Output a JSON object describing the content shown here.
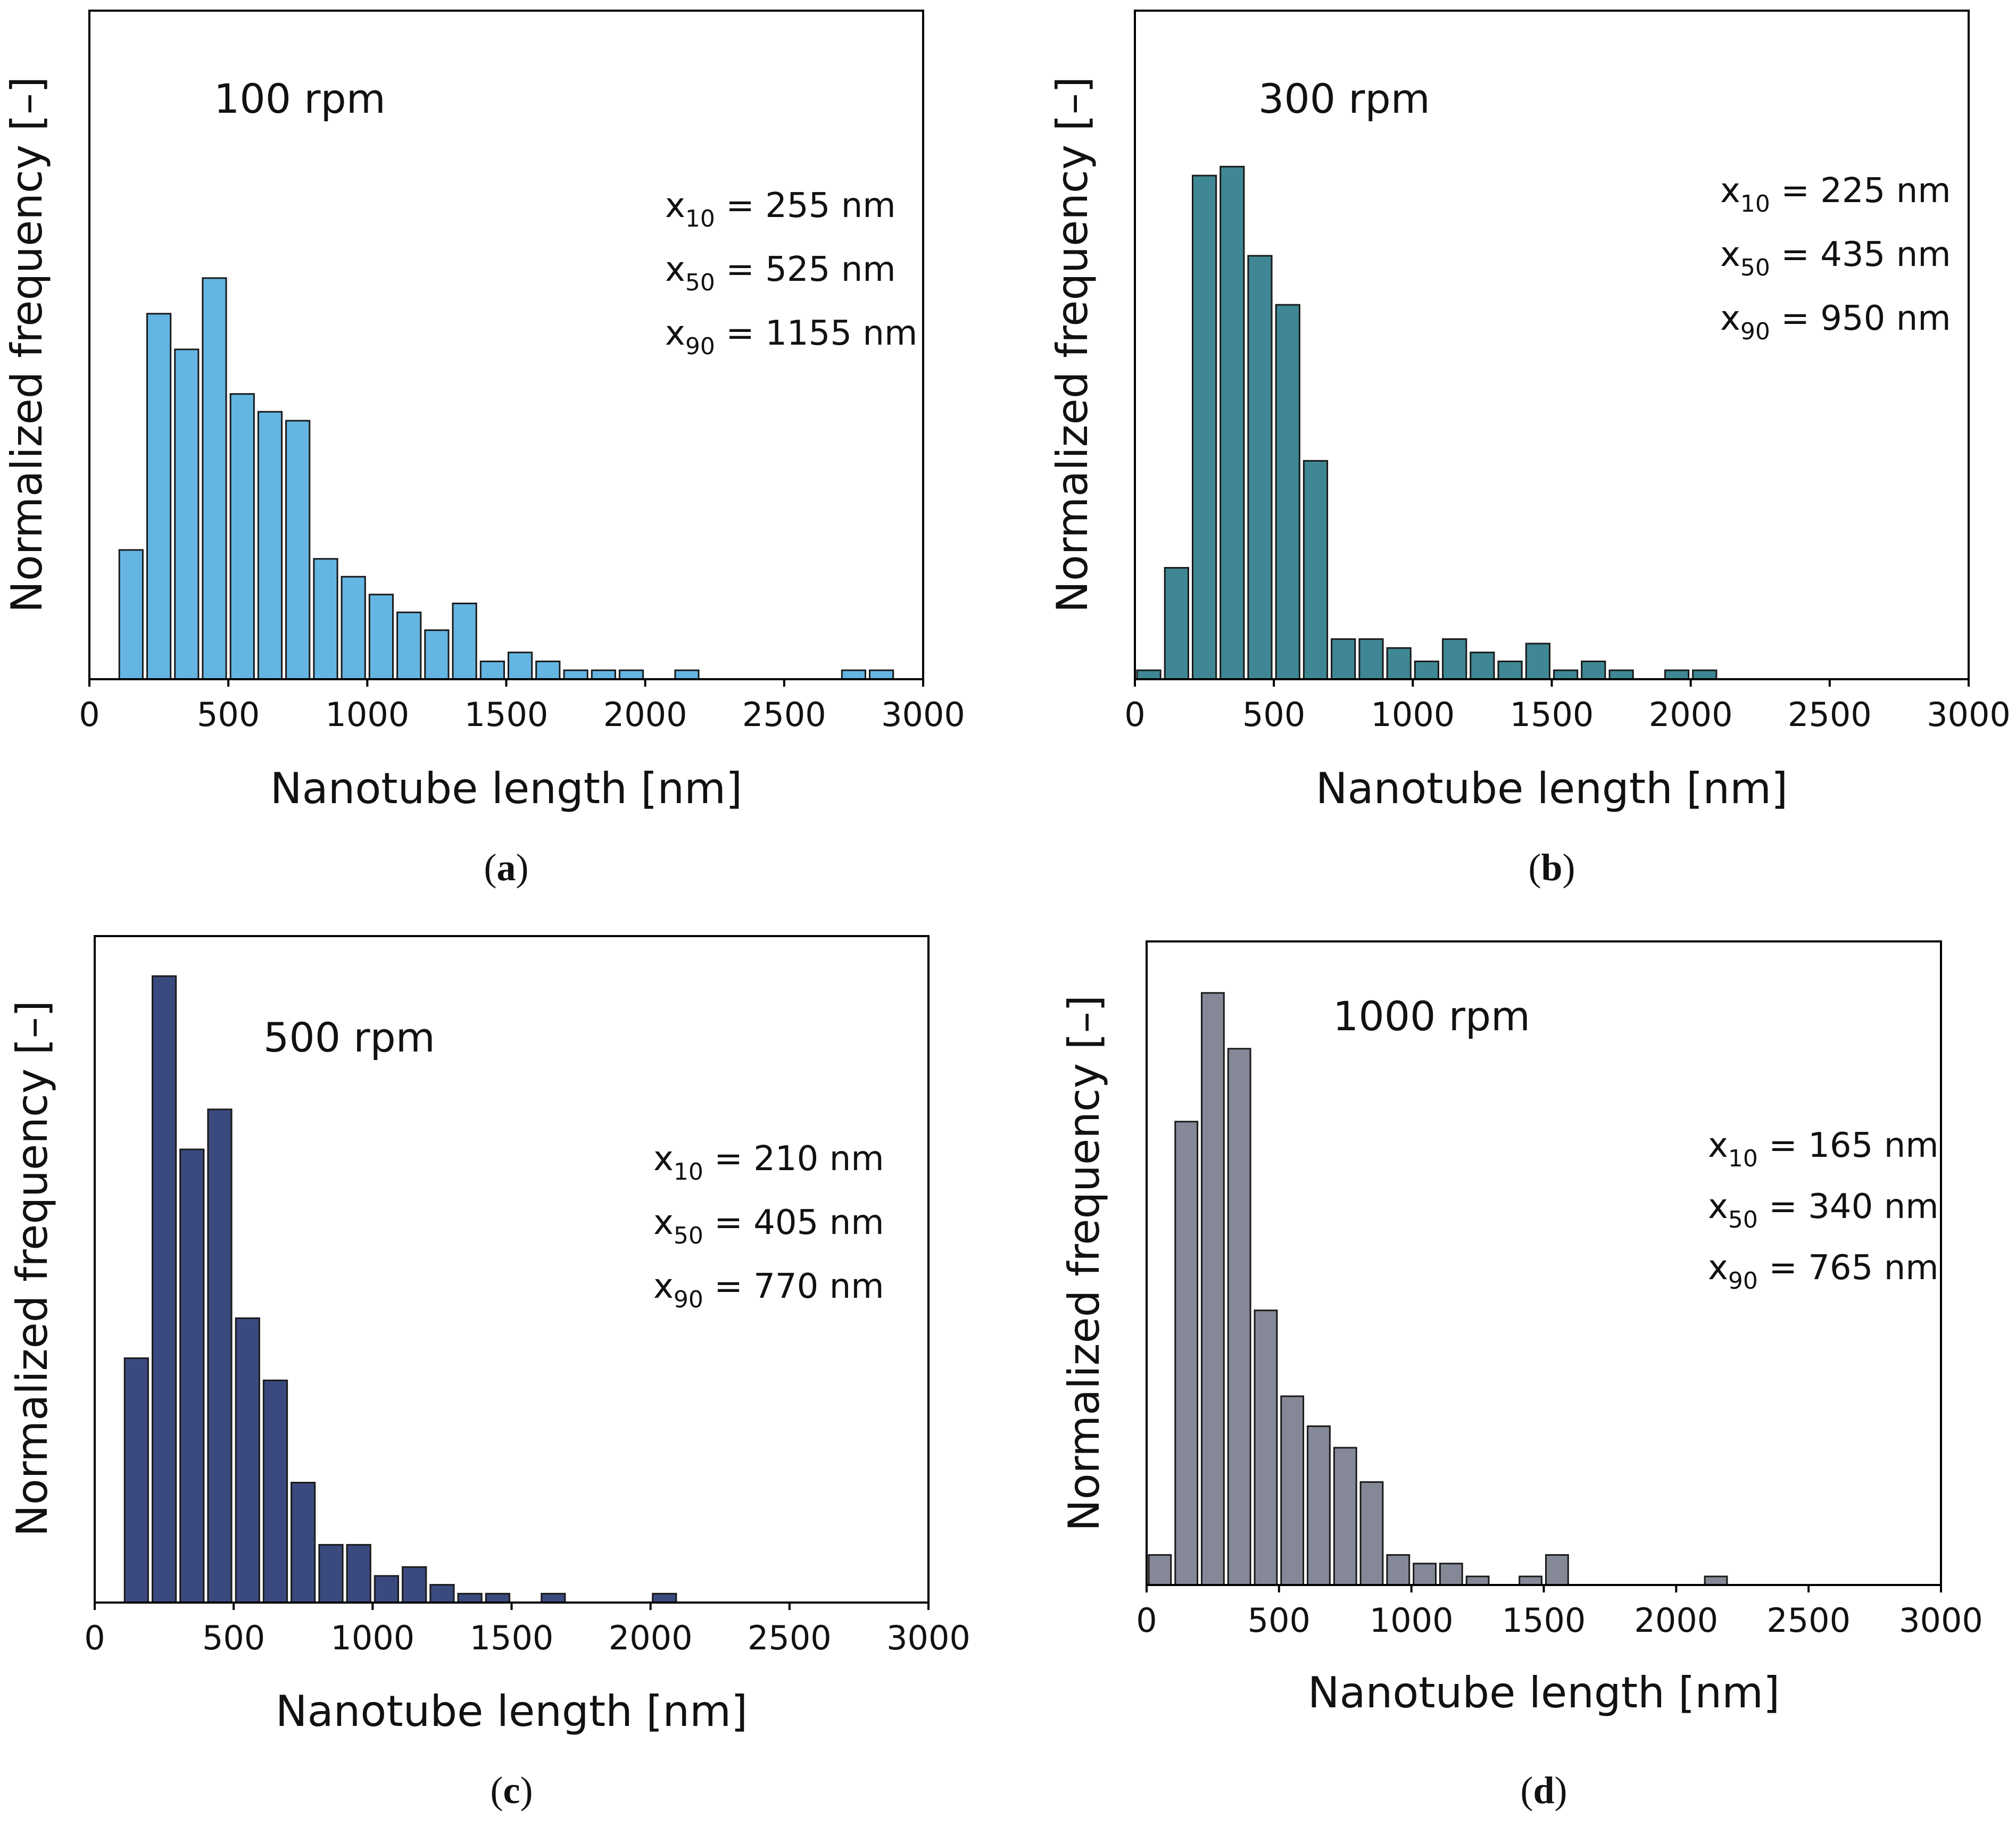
{
  "chart_data": [
    {
      "type": "bar",
      "panel_label": "a",
      "title": "100 rpm",
      "xlabel": "Nanotube length [nm]",
      "ylabel": "Normalized frequency [–]",
      "xlim": [
        0,
        3000
      ],
      "ylim": [
        0,
        0.15
      ],
      "xticks": [
        "0",
        "500",
        "1000",
        "1500",
        "2000",
        "2500",
        "3000"
      ],
      "bar_color": "#64b5e2",
      "annotations": [
        {
          "sub": "10",
          "text": " = 255 nm"
        },
        {
          "sub": "50",
          "text": " = 525 nm"
        },
        {
          "sub": "90",
          "text": " = 1155 nm"
        }
      ],
      "x": [
        150,
        250,
        350,
        450,
        550,
        650,
        750,
        850,
        950,
        1050,
        1150,
        1250,
        1350,
        1450,
        1550,
        1650,
        1750,
        1850,
        1950,
        2050,
        2150,
        2250,
        2350,
        2450,
        2550,
        2650,
        2750,
        2850
      ],
      "values": [
        0.029,
        0.082,
        0.074,
        0.09,
        0.064,
        0.06,
        0.058,
        0.027,
        0.023,
        0.019,
        0.015,
        0.011,
        0.017,
        0.004,
        0.006,
        0.004,
        0.002,
        0.002,
        0.002,
        0,
        0.002,
        0,
        0,
        0,
        0,
        0,
        0.002,
        0.002
      ]
    },
    {
      "type": "bar",
      "panel_label": "b",
      "title": "300 rpm",
      "xlabel": "Nanotube length [nm]",
      "ylabel": "Normalized frequency [–]",
      "xlim": [
        0,
        3000
      ],
      "ylim": [
        0,
        0.15
      ],
      "xticks": [
        "0",
        "500",
        "1000",
        "1500",
        "2000",
        "2500",
        "3000"
      ],
      "bar_color": "#3f8794",
      "annotations": [
        {
          "sub": "10",
          "text": " = 225 nm"
        },
        {
          "sub": "50",
          "text": " = 435 nm"
        },
        {
          "sub": "90",
          "text": " = 950 nm"
        }
      ],
      "x": [
        50,
        150,
        250,
        350,
        450,
        550,
        650,
        750,
        850,
        950,
        1050,
        1150,
        1250,
        1350,
        1450,
        1550,
        1650,
        1750,
        1850,
        1950,
        2050
      ],
      "values": [
        0.002,
        0.025,
        0.113,
        0.115,
        0.095,
        0.084,
        0.049,
        0.009,
        0.009,
        0.007,
        0.004,
        0.009,
        0.006,
        0.004,
        0.008,
        0.002,
        0.004,
        0.002,
        0,
        0.002,
        0.002
      ]
    },
    {
      "type": "bar",
      "panel_label": "c",
      "title": "500 rpm",
      "xlabel": "Nanotube length [nm]",
      "ylabel": "Normalized frequency [–]",
      "xlim": [
        0,
        3000
      ],
      "ylim": [
        0,
        0.15
      ],
      "xticks": [
        "0",
        "500",
        "1000",
        "1500",
        "2000",
        "2500",
        "3000"
      ],
      "bar_color": "#3a4a7e",
      "annotations": [
        {
          "sub": "10",
          "text": " = 210 nm"
        },
        {
          "sub": "50",
          "text": " = 405 nm"
        },
        {
          "sub": "90",
          "text": " = 770 nm"
        }
      ],
      "x": [
        150,
        250,
        350,
        450,
        550,
        650,
        750,
        850,
        950,
        1050,
        1150,
        1250,
        1350,
        1450,
        1550,
        1650,
        1750,
        1850,
        1950,
        2050
      ],
      "values": [
        0.055,
        0.141,
        0.102,
        0.111,
        0.064,
        0.05,
        0.027,
        0.013,
        0.013,
        0.006,
        0.008,
        0.004,
        0.002,
        0.002,
        0,
        0.002,
        0,
        0,
        0,
        0.002
      ]
    },
    {
      "type": "bar",
      "panel_label": "d",
      "title": "1000 rpm",
      "xlabel": "Nanotube length [nm]",
      "ylabel": "Normalized frequency [–]",
      "xlim": [
        0,
        3000
      ],
      "ylim": [
        0,
        0.15
      ],
      "xticks": [
        "0",
        "500",
        "1000",
        "1500",
        "2000",
        "2500",
        "3000"
      ],
      "bar_color": "#858896",
      "annotations": [
        {
          "sub": "10",
          "text": " = 165 nm"
        },
        {
          "sub": "50",
          "text": " = 340 nm"
        },
        {
          "sub": "90",
          "text": " = 765 nm"
        }
      ],
      "x": [
        50,
        150,
        250,
        350,
        450,
        550,
        650,
        750,
        850,
        950,
        1050,
        1150,
        1250,
        1350,
        1450,
        1550,
        1650,
        1750,
        1850,
        1950,
        2050,
        2150
      ],
      "values": [
        0.007,
        0.108,
        0.138,
        0.125,
        0.064,
        0.044,
        0.037,
        0.032,
        0.024,
        0.007,
        0.005,
        0.005,
        0.002,
        0,
        0.002,
        0.007,
        0,
        0,
        0,
        0,
        0,
        0.002
      ]
    }
  ]
}
